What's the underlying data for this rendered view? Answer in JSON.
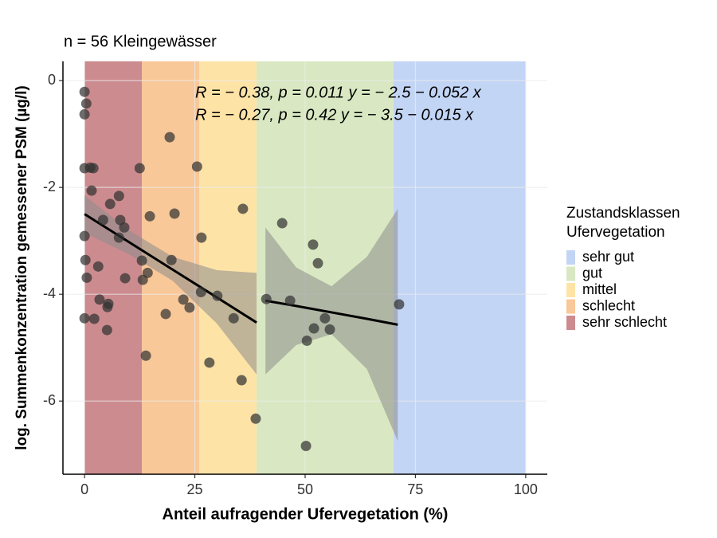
{
  "chart_data": {
    "type": "scatter",
    "title": "n =  56 Kleingewässer",
    "xlabel": "Anteil aufragender Ufervegetation (%)",
    "ylabel": "log. Summenkonzentration gemessener PSM (µg/l)",
    "xlim": [
      -4.9,
      104.9
    ],
    "ylim": [
      -7.37,
      0.36
    ],
    "xticks": [
      0,
      25,
      50,
      75,
      100
    ],
    "yticks": [
      0,
      -2,
      -4,
      -6
    ],
    "grid": true,
    "point_color": "#333333",
    "legend_position": "right",
    "legend_title": [
      "Zustandsklassen",
      "Ufervegetation"
    ],
    "bands": [
      {
        "name": "sehr gut",
        "color": "#c3d5f5",
        "x": [
          70,
          100
        ]
      },
      {
        "name": "gut",
        "color": "#d9e8c2",
        "x": [
          39,
          70
        ]
      },
      {
        "name": "mittel",
        "color": "#fde3a6",
        "x": [
          26,
          39
        ]
      },
      {
        "name": "schlecht",
        "color": "#f9c898",
        "x": [
          13,
          26
        ]
      },
      {
        "name": "sehr schlecht",
        "color": "#cc8c8f",
        "x": [
          0,
          13
        ]
      }
    ],
    "x": [
      0,
      0.4,
      0,
      0,
      1.3,
      2,
      1.6,
      7.8,
      19.3,
      12.5,
      25.5,
      14.8,
      20.4,
      35.9,
      44.8,
      4.2,
      8.1,
      5.8,
      9,
      7.8,
      0,
      26.5,
      51.8,
      52.9,
      0.2,
      3.1,
      13,
      19.7,
      14.3,
      0.5,
      9.2,
      13.2,
      26.4,
      30.1,
      41.2,
      46.6,
      3.4,
      22.4,
      5.4,
      5.2,
      23.8,
      18.4,
      0,
      2.2,
      33.8,
      54.5,
      71.3,
      52,
      55.6,
      5.1,
      50.4,
      13.9,
      28.3,
      35.6,
      38.8,
      50.2
    ],
    "y": [
      -0.21,
      -0.43,
      -0.63,
      -1.64,
      -1.63,
      -1.64,
      -2.06,
      -2.16,
      -1.06,
      -1.64,
      -1.61,
      -2.54,
      -2.49,
      -2.4,
      -2.67,
      -2.61,
      -2.61,
      -2.31,
      -2.75,
      -2.94,
      -2.91,
      -2.94,
      -3.07,
      -3.42,
      -3.36,
      -3.48,
      -3.37,
      -3.36,
      -3.6,
      -3.69,
      -3.7,
      -3.73,
      -3.96,
      -4.03,
      -4.09,
      -4.12,
      -4.1,
      -4.1,
      -4.18,
      -4.24,
      -4.25,
      -4.37,
      -4.45,
      -4.46,
      -4.45,
      -4.45,
      -4.19,
      -4.64,
      -4.66,
      -4.67,
      -4.87,
      -5.15,
      -5.28,
      -5.61,
      -6.33,
      -6.84
    ],
    "fits": [
      {
        "label": "R = − 0.38, p = 0.011   y = − 2.5 − 0.052 x",
        "color": "#000000",
        "ribbon_color": "#8c8c8c",
        "x": [
          0,
          10,
          20,
          30,
          39
        ],
        "y": [
          -2.5,
          -3.02,
          -3.54,
          -4.06,
          -4.53
        ],
        "lower": [
          -2.85,
          -3.25,
          -3.75,
          -4.55,
          -5.5
        ],
        "upper": [
          -2.15,
          -2.8,
          -3.3,
          -3.55,
          -3.6
        ]
      },
      {
        "label": "R = − 0.27, p = 0.42    y = − 3.5 − 0.015 x",
        "color": "#000000",
        "ribbon_color": "#8c8c8c",
        "x": [
          41,
          48,
          56,
          64,
          71
        ],
        "y": [
          -4.12,
          -4.22,
          -4.34,
          -4.46,
          -4.57
        ],
        "lower": [
          -5.5,
          -4.95,
          -4.75,
          -5.4,
          -6.75
        ],
        "upper": [
          -2.75,
          -3.5,
          -3.85,
          -3.3,
          -2.4
        ]
      }
    ]
  }
}
